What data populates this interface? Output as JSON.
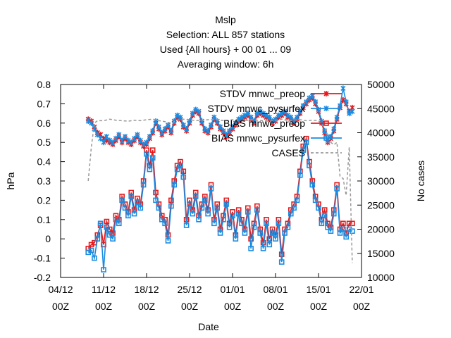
{
  "chart_data": {
    "type": "line",
    "title_lines": [
      "Mslp",
      "Selection: ALL    857 stations",
      "Used {All hours} + 00 01 ... 09",
      "Averaging window:  6h"
    ],
    "xlabel": "Date",
    "ylabel": "hPa",
    "y2label": "No cases",
    "x_ticks": [
      {
        "top": "04/12",
        "bottom": "00Z",
        "day": 0
      },
      {
        "top": "11/12",
        "bottom": "00Z",
        "day": 7
      },
      {
        "top": "18/12",
        "bottom": "00Z",
        "day": 14
      },
      {
        "top": "25/12",
        "bottom": "00Z",
        "day": 21
      },
      {
        "top": "01/01",
        "bottom": "00Z",
        "day": 28
      },
      {
        "top": "08/01",
        "bottom": "00Z",
        "day": 35
      },
      {
        "top": "15/01",
        "bottom": "00Z",
        "day": 42
      },
      {
        "top": "22/01",
        "bottom": "00Z",
        "day": 49
      }
    ],
    "xlim": [
      0,
      49
    ],
    "ylim": [
      -0.2,
      0.8
    ],
    "y_ticks": [
      "-0.2",
      "-0.1",
      "0",
      "0.1",
      "0.2",
      "0.3",
      "0.4",
      "0.5",
      "0.6",
      "0.7",
      "0.8"
    ],
    "y2lim": [
      10000,
      50000
    ],
    "y2_ticks": [
      "10000",
      "15000",
      "20000",
      "25000",
      "30000",
      "35000",
      "40000",
      "45000",
      "50000"
    ],
    "legend_position": "top-right",
    "series": [
      {
        "name": "STDV mnwc_preop",
        "color": "#e41a1c",
        "marker": "x",
        "axis": "left",
        "x": [
          4.5,
          5,
          5.5,
          6,
          6.5,
          7,
          7.5,
          8,
          8.5,
          9,
          9.5,
          10,
          10.5,
          11,
          11.5,
          12,
          12.5,
          13,
          13.5,
          14,
          14.5,
          15,
          15.5,
          16,
          16.5,
          17,
          17.5,
          18,
          18.5,
          19,
          19.5,
          20,
          20.5,
          21,
          21.5,
          22,
          22.5,
          23,
          23.5,
          24,
          24.5,
          25,
          25.5,
          26,
          26.5,
          27,
          27.5,
          28,
          28.5,
          29,
          29.5,
          30,
          30.5,
          31,
          31.5,
          32,
          32.5,
          33,
          33.5,
          34,
          34.5,
          35,
          35.5,
          36,
          36.5,
          37,
          37.5,
          38,
          38.5,
          39,
          39.5,
          40,
          40.5,
          41,
          41.5,
          42,
          42.5,
          43,
          43.5,
          44,
          44.5,
          45,
          45.5,
          46,
          46.5,
          47,
          47.5
        ],
        "y": [
          0.62,
          0.61,
          0.58,
          0.55,
          0.54,
          0.52,
          0.51,
          0.5,
          0.49,
          0.51,
          0.53,
          0.5,
          0.52,
          0.5,
          0.49,
          0.51,
          0.53,
          0.5,
          0.48,
          0.49,
          0.52,
          0.55,
          0.6,
          0.57,
          0.54,
          0.56,
          0.58,
          0.55,
          0.6,
          0.63,
          0.62,
          0.58,
          0.56,
          0.6,
          0.64,
          0.66,
          0.65,
          0.6,
          0.56,
          0.55,
          0.58,
          0.62,
          0.6,
          0.57,
          0.55,
          0.53,
          0.55,
          0.57,
          0.59,
          0.61,
          0.62,
          0.63,
          0.64,
          0.62,
          0.6,
          0.64,
          0.65,
          0.64,
          0.63,
          0.62,
          0.6,
          0.61,
          0.63,
          0.64,
          0.65,
          0.63,
          0.62,
          0.6,
          0.62,
          0.65,
          0.68,
          0.7,
          0.72,
          0.73,
          0.7,
          0.66,
          0.6,
          0.55,
          0.5,
          0.52,
          0.56,
          0.62,
          0.68,
          0.72,
          0.7,
          0.66,
          0.68
        ]
      },
      {
        "name": "STDV mnwc_pysurfex",
        "color": "#1a8be0",
        "marker": "x",
        "axis": "left",
        "x": [
          4.5,
          5,
          5.5,
          6,
          6.5,
          7,
          7.5,
          8,
          8.5,
          9,
          9.5,
          10,
          10.5,
          11,
          11.5,
          12,
          12.5,
          13,
          13.5,
          14,
          14.5,
          15,
          15.5,
          16,
          16.5,
          17,
          17.5,
          18,
          18.5,
          19,
          19.5,
          20,
          20.5,
          21,
          21.5,
          22,
          22.5,
          23,
          23.5,
          24,
          24.5,
          25,
          25.5,
          26,
          26.5,
          27,
          27.5,
          28,
          28.5,
          29,
          29.5,
          30,
          30.5,
          31,
          31.5,
          32,
          32.5,
          33,
          33.5,
          34,
          34.5,
          35,
          35.5,
          36,
          36.5,
          37,
          37.5,
          38,
          38.5,
          39,
          39.5,
          40,
          40.5,
          41,
          41.5,
          42,
          42.5,
          43,
          43.5,
          44,
          44.5,
          45,
          45.5,
          46,
          46.5,
          47,
          47.5
        ],
        "y": [
          0.61,
          0.6,
          0.57,
          0.54,
          0.52,
          0.5,
          0.53,
          0.51,
          0.5,
          0.52,
          0.54,
          0.51,
          0.53,
          0.51,
          0.5,
          0.52,
          0.54,
          0.51,
          0.49,
          0.5,
          0.53,
          0.56,
          0.61,
          0.58,
          0.55,
          0.57,
          0.59,
          0.56,
          0.61,
          0.64,
          0.63,
          0.59,
          0.57,
          0.61,
          0.65,
          0.67,
          0.66,
          0.61,
          0.57,
          0.56,
          0.59,
          0.63,
          0.61,
          0.58,
          0.56,
          0.54,
          0.56,
          0.58,
          0.6,
          0.62,
          0.63,
          0.64,
          0.65,
          0.63,
          0.61,
          0.65,
          0.66,
          0.65,
          0.64,
          0.63,
          0.61,
          0.62,
          0.64,
          0.65,
          0.66,
          0.64,
          0.63,
          0.61,
          0.63,
          0.66,
          0.69,
          0.71,
          0.73,
          0.74,
          0.71,
          0.67,
          0.61,
          0.56,
          0.51,
          0.53,
          0.57,
          0.63,
          0.69,
          0.78,
          0.71,
          0.65,
          0.66
        ]
      },
      {
        "name": "BIAS mnwc_preop",
        "color": "#e41a1c",
        "marker": "square",
        "axis": "left",
        "x": [
          4.5,
          5,
          5.5,
          6,
          6.5,
          7,
          7.5,
          8,
          8.5,
          9,
          9.5,
          10,
          10.5,
          11,
          11.5,
          12,
          12.5,
          13,
          13.5,
          14,
          14.5,
          15,
          15.5,
          16,
          16.5,
          17,
          17.5,
          18,
          18.5,
          19,
          19.5,
          20,
          20.5,
          21,
          21.5,
          22,
          22.5,
          23,
          23.5,
          24,
          24.5,
          25,
          25.5,
          26,
          26.5,
          27,
          27.5,
          28,
          28.5,
          29,
          29.5,
          30,
          30.5,
          31,
          31.5,
          32,
          32.5,
          33,
          33.5,
          34,
          34.5,
          35,
          35.5,
          36,
          36.5,
          37,
          37.5,
          38,
          38.5,
          39,
          39.5,
          40,
          40.5,
          41,
          41.5,
          42,
          42.5,
          43,
          43.5,
          44,
          44.5,
          45,
          45.5,
          46,
          46.5,
          47,
          47.5
        ],
        "y": [
          -0.05,
          -0.03,
          -0.02,
          0.02,
          0.07,
          -0.03,
          0.09,
          0.05,
          0.03,
          0.12,
          0.1,
          0.22,
          0.18,
          0.14,
          0.24,
          0.15,
          0.21,
          0.18,
          0.3,
          0.46,
          0.38,
          0.46,
          0.24,
          0.18,
          0.12,
          0.1,
          0.02,
          0.2,
          0.3,
          0.38,
          0.4,
          0.35,
          0.1,
          0.2,
          0.15,
          0.24,
          0.12,
          0.18,
          0.22,
          0.15,
          0.28,
          0.1,
          0.18,
          0.05,
          0.12,
          0.2,
          0.08,
          0.14,
          0.02,
          0.15,
          0.1,
          0.05,
          0.16,
          0.0,
          0.08,
          0.17,
          0.05,
          -0.02,
          0.1,
          0.0,
          0.05,
          0.02,
          0.1,
          -0.08,
          0.05,
          0.08,
          0.15,
          0.18,
          0.22,
          0.35,
          0.48,
          0.52,
          0.4,
          0.3,
          0.22,
          0.18,
          0.1,
          0.15,
          0.08,
          0.06,
          0.15,
          0.28,
          0.05,
          0.08,
          0.03,
          0.08,
          0.08
        ]
      },
      {
        "name": "BIAS mnwc_pysurfex",
        "color": "#1a8be0",
        "marker": "square",
        "axis": "left",
        "x": [
          4.5,
          5,
          5.5,
          6,
          6.5,
          7,
          7.5,
          8,
          8.5,
          9,
          9.5,
          10,
          10.5,
          11,
          11.5,
          12,
          12.5,
          13,
          13.5,
          14,
          14.5,
          15,
          15.5,
          16,
          16.5,
          17,
          17.5,
          18,
          18.5,
          19,
          19.5,
          20,
          20.5,
          21,
          21.5,
          22,
          22.5,
          23,
          23.5,
          24,
          24.5,
          25,
          25.5,
          26,
          26.5,
          27,
          27.5,
          28,
          28.5,
          29,
          29.5,
          30,
          30.5,
          31,
          31.5,
          32,
          32.5,
          33,
          33.5,
          34,
          34.5,
          35,
          35.5,
          36,
          36.5,
          37,
          37.5,
          38,
          38.5,
          39,
          39.5,
          40,
          40.5,
          41,
          41.5,
          42,
          42.5,
          43,
          43.5,
          44,
          44.5,
          45,
          45.5,
          46,
          46.5,
          47,
          47.5
        ],
        "y": [
          -0.07,
          -0.06,
          -0.1,
          0.0,
          0.08,
          -0.16,
          0.06,
          0.02,
          0.0,
          0.1,
          0.08,
          0.2,
          0.16,
          0.12,
          0.22,
          0.13,
          0.19,
          0.16,
          0.28,
          0.44,
          0.36,
          0.42,
          0.2,
          0.16,
          0.1,
          0.08,
          -0.01,
          0.17,
          0.28,
          0.36,
          0.38,
          0.32,
          0.07,
          0.18,
          0.13,
          0.22,
          0.1,
          0.16,
          0.2,
          0.13,
          0.26,
          0.08,
          0.16,
          0.03,
          0.1,
          0.18,
          0.06,
          0.12,
          0.0,
          0.13,
          0.08,
          0.03,
          0.14,
          -0.05,
          0.06,
          0.15,
          0.03,
          -0.05,
          0.08,
          -0.03,
          0.03,
          0.0,
          0.08,
          -0.12,
          0.03,
          0.06,
          0.13,
          0.16,
          0.2,
          0.33,
          0.46,
          0.5,
          0.38,
          0.28,
          0.2,
          0.16,
          0.08,
          0.12,
          0.06,
          0.04,
          0.13,
          0.26,
          0.03,
          0.05,
          0.01,
          0.05,
          0.04
        ]
      },
      {
        "name": "CASES",
        "color": "#999999",
        "marker": "none",
        "dash": "4,3",
        "axis": "right",
        "x": [
          4.5,
          5,
          5.5,
          6,
          7,
          8,
          9,
          10,
          11,
          12,
          13,
          14,
          15,
          16,
          17,
          18,
          19,
          20,
          21,
          22,
          23,
          24,
          25,
          26,
          27,
          28,
          29,
          30,
          31,
          32,
          33,
          34,
          35,
          36,
          37,
          38,
          39,
          40,
          41,
          42,
          43,
          44,
          44.5,
          45,
          45.5,
          46,
          46.5,
          47,
          47.5
        ],
        "y": [
          30000,
          37000,
          42000,
          42500,
          42500,
          42800,
          42600,
          42500,
          42400,
          42600,
          42500,
          42700,
          42800,
          42500,
          42300,
          42000,
          42600,
          42800,
          42700,
          42500,
          42600,
          42700,
          42800,
          42600,
          42500,
          42700,
          42600,
          42500,
          42700,
          42600,
          42500,
          42400,
          42600,
          42800,
          42500,
          42600,
          42700,
          42500,
          42600,
          42500,
          41000,
          38000,
          37500,
          38000,
          31000,
          30500,
          27000,
          37000,
          13000
        ]
      }
    ]
  }
}
